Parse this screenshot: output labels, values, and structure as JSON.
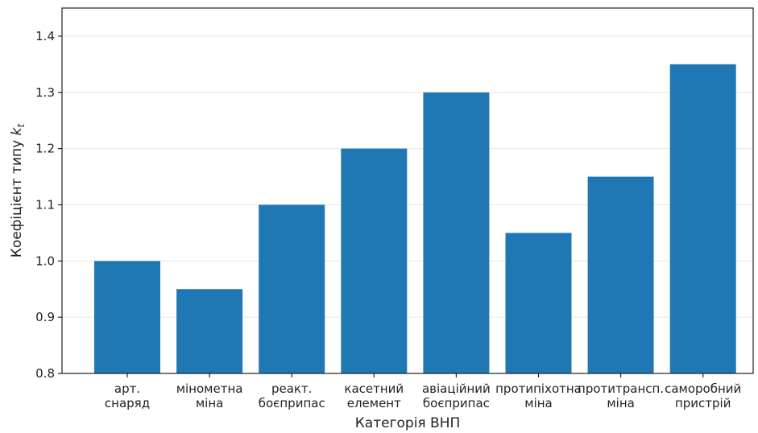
{
  "chart_data": {
    "type": "bar",
    "title": "",
    "xlabel": "Категорія ВНП",
    "ylabel": "Коефіцієнт типу",
    "ylabel_symbol": "k",
    "ylabel_subscript": "t",
    "categories": [
      [
        "арт.",
        "снаряд"
      ],
      [
        "мінометна",
        "міна"
      ],
      [
        "реакт.",
        "боєприпас"
      ],
      [
        "касетний",
        "елемент"
      ],
      [
        "авіаційний",
        "боєприпас"
      ],
      [
        "протипіхотна",
        "міна"
      ],
      [
        "протитрансп.",
        "міна"
      ],
      [
        "саморобний",
        "пристрій"
      ]
    ],
    "values": [
      1.0,
      0.95,
      1.1,
      1.2,
      1.3,
      1.05,
      1.15,
      1.35
    ],
    "ylim": [
      0.8,
      1.45
    ],
    "yticks": [
      "0.8",
      "0.9",
      "1.0",
      "1.1",
      "1.2",
      "1.3",
      "1.4"
    ],
    "grid": "y",
    "bar_color": "#1f77b4"
  }
}
